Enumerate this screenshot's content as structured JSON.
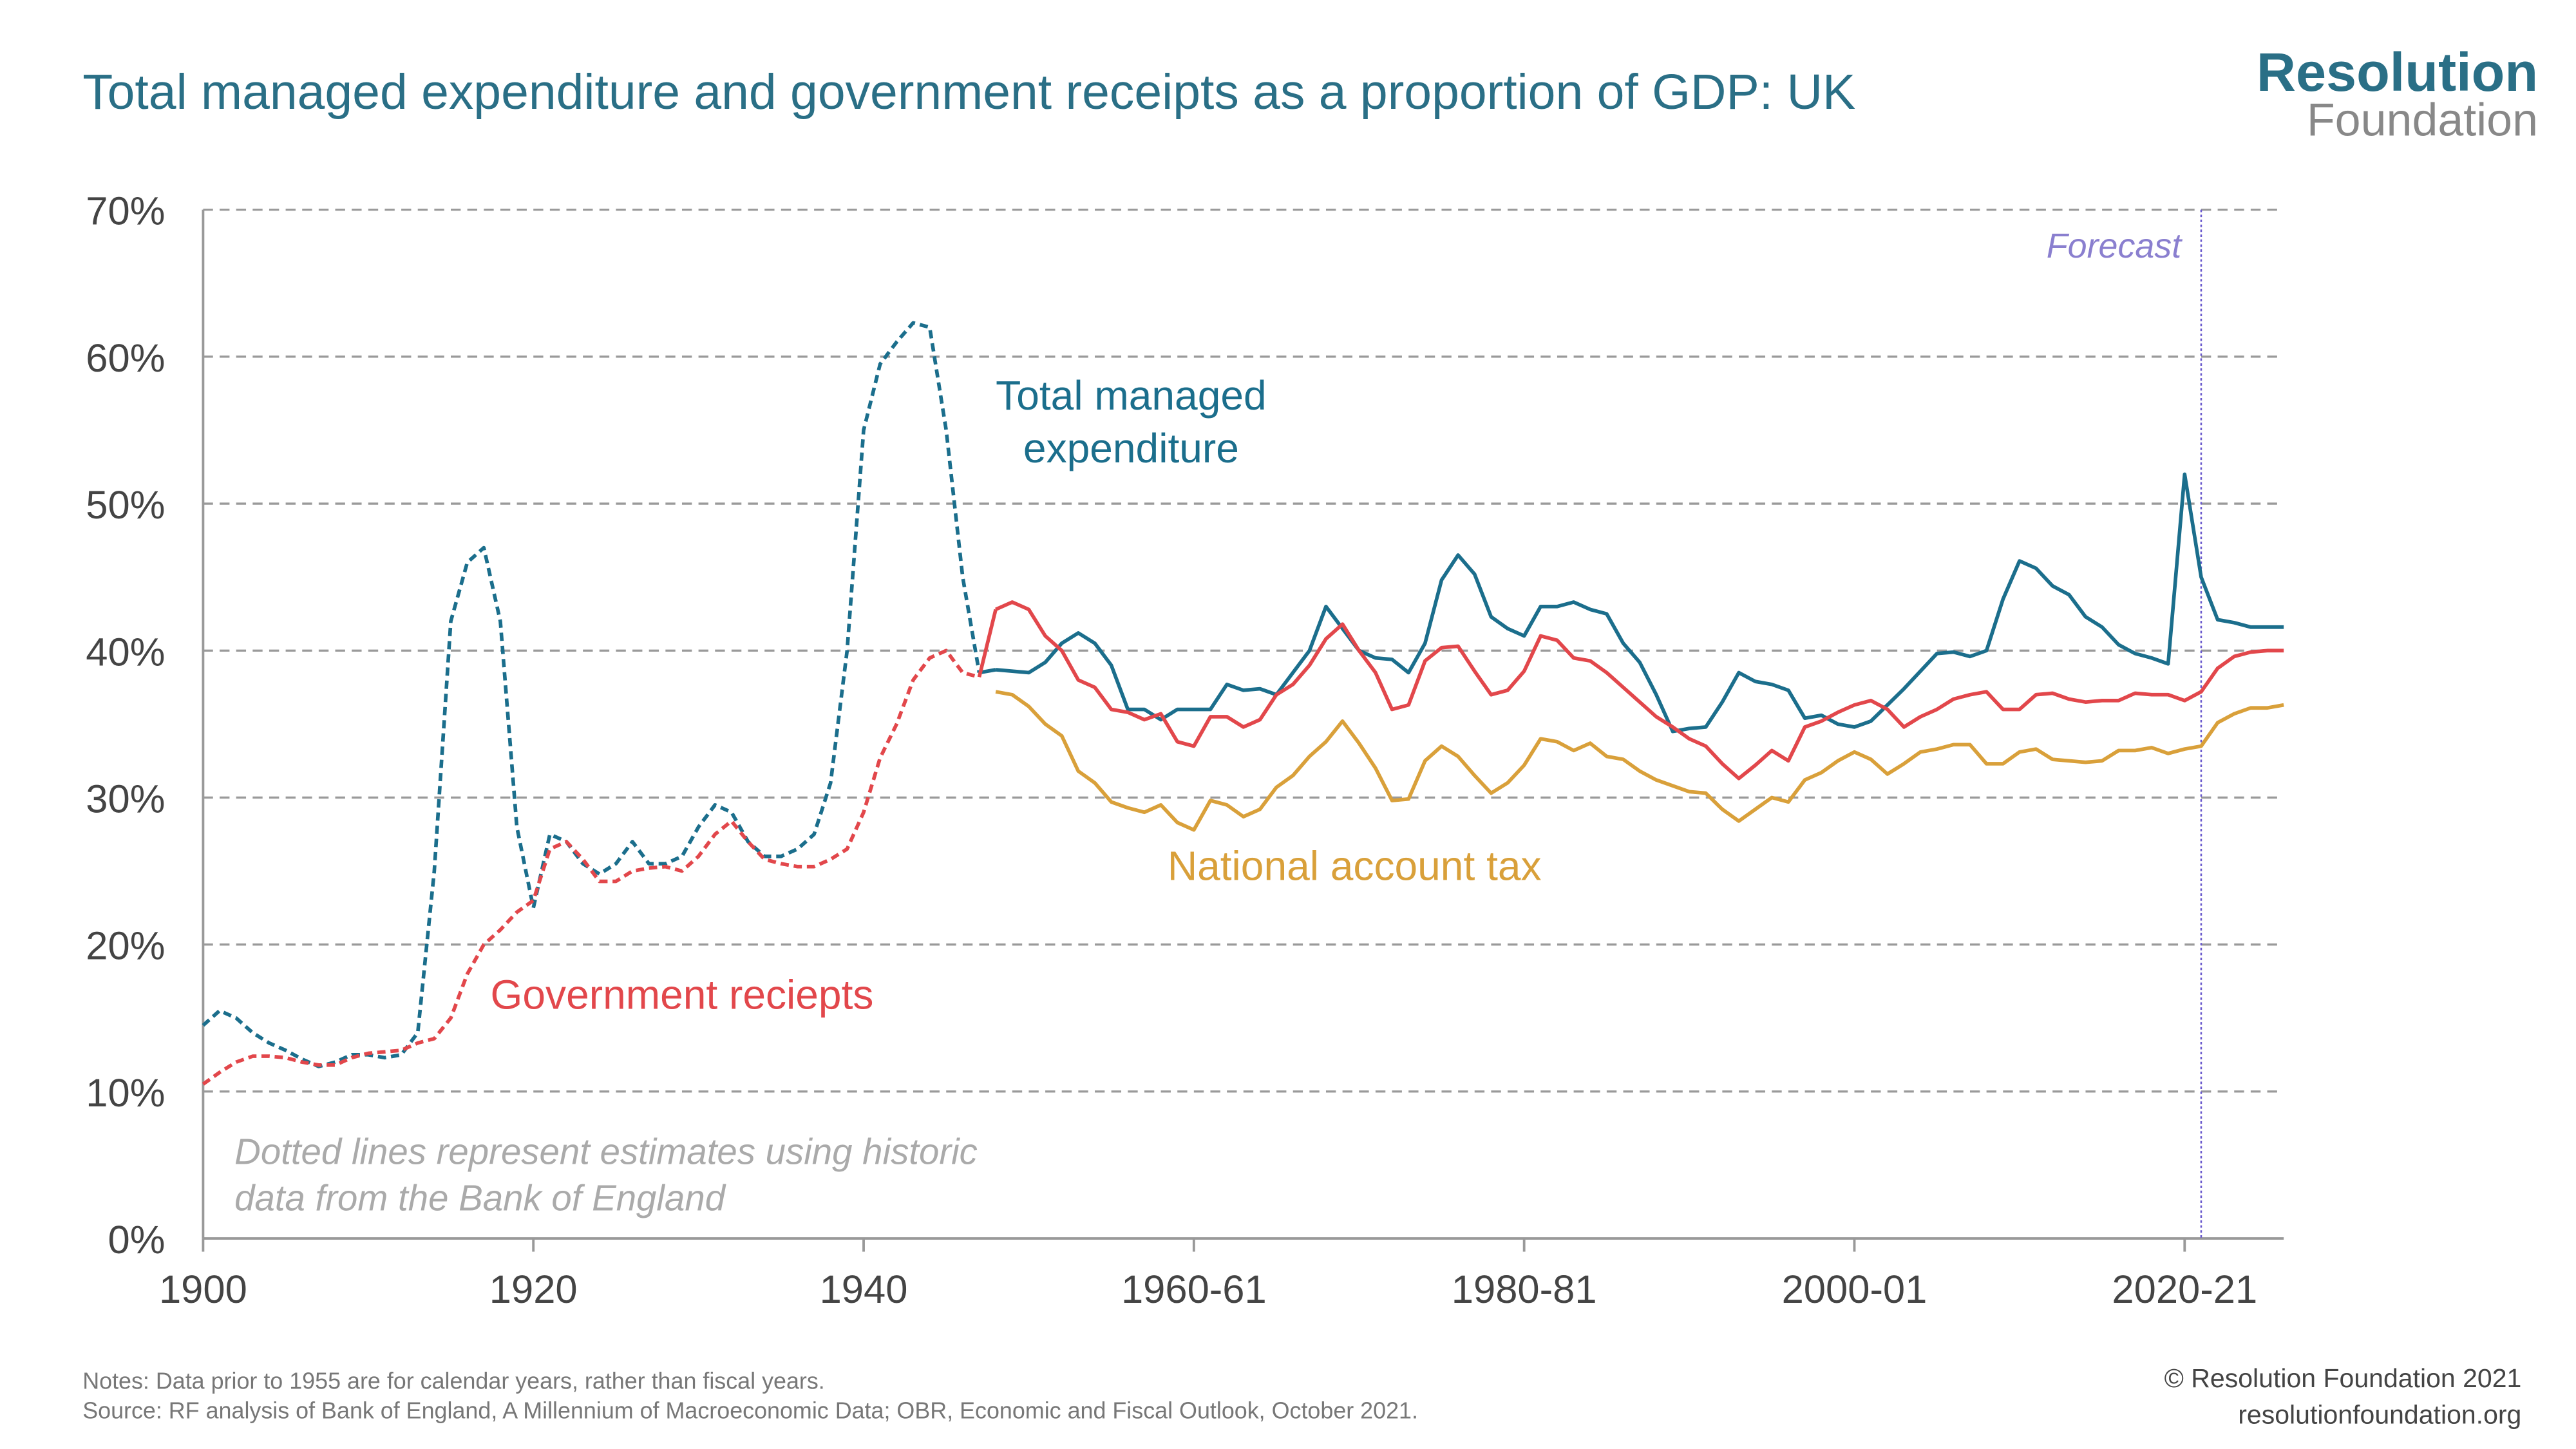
{
  "chart_data": {
    "type": "line",
    "title": "Total managed expenditure and government receipts as a proportion of GDP: UK",
    "logo": [
      "Resolution",
      "Foundation"
    ],
    "x": [
      1900,
      1901,
      1902,
      1903,
      1904,
      1905,
      1906,
      1907,
      1908,
      1909,
      1910,
      1911,
      1912,
      1913,
      1914,
      1915,
      1916,
      1917,
      1918,
      1919,
      1920,
      1921,
      1922,
      1923,
      1924,
      1925,
      1926,
      1927,
      1928,
      1929,
      1930,
      1931,
      1932,
      1933,
      1934,
      1935,
      1936,
      1937,
      1938,
      1939,
      1940,
      1941,
      1942,
      1943,
      1944,
      1945,
      1946,
      1947,
      1948,
      1949,
      1950,
      1951,
      1952,
      1953,
      1954,
      1955,
      1956,
      1957,
      1958,
      1959,
      1960,
      1961,
      1962,
      1963,
      1964,
      1965,
      1966,
      1967,
      1968,
      1969,
      1970,
      1971,
      1972,
      1973,
      1974,
      1975,
      1976,
      1977,
      1978,
      1979,
      1980,
      1981,
      1982,
      1983,
      1984,
      1985,
      1986,
      1987,
      1988,
      1989,
      1990,
      1991,
      1992,
      1993,
      1994,
      1995,
      1996,
      1997,
      1998,
      1999,
      2000,
      2001,
      2002,
      2003,
      2004,
      2005,
      2006,
      2007,
      2008,
      2009,
      2010,
      2011,
      2012,
      2013,
      2014,
      2015,
      2016,
      2017,
      2018,
      2019,
      2020,
      2021,
      2022,
      2023,
      2024,
      2025,
      2026
    ],
    "series": [
      {
        "name": "Total managed expenditure",
        "color": "#1b6e8c",
        "estimate_until": 1947,
        "values": [
          14.5,
          15.5,
          15,
          14,
          13.3,
          12.8,
          12.2,
          11.7,
          12,
          12.5,
          12.5,
          12.3,
          12.5,
          14,
          25,
          42,
          46,
          47,
          42,
          28,
          22.5,
          27.5,
          27,
          25.5,
          24.8,
          25.5,
          27,
          25.5,
          25.5,
          26,
          28,
          29.5,
          29,
          27,
          26,
          26,
          26.5,
          27.5,
          31,
          40,
          55,
          59.5,
          61,
          62.3,
          62,
          55,
          45,
          38.5,
          38.7,
          38.6,
          38.5,
          39.2,
          40.5,
          41.2,
          40.5,
          39,
          36,
          36,
          35.3,
          36,
          36,
          36,
          37.7,
          37.3,
          37.4,
          37,
          38.5,
          40,
          43,
          41.5,
          40,
          39.5,
          39.4,
          38.5,
          40.5,
          44.8,
          46.5,
          45.2,
          42.3,
          41.5,
          41,
          43,
          43,
          43.3,
          42.8,
          42.5,
          40.5,
          39.2,
          37,
          34.5,
          34.7,
          34.8,
          36.5,
          38.5,
          37.9,
          37.7,
          37.3,
          35.4,
          35.6,
          35,
          34.8,
          35.2,
          36.3,
          37.4,
          38.6,
          39.8,
          39.9,
          39.6,
          40,
          43.5,
          46.1,
          45.6,
          44.4,
          43.8,
          42.3,
          41.6,
          40.4,
          39.8,
          39.5,
          39.1,
          52,
          45,
          42.1,
          41.9,
          41.6,
          41.6,
          41.6
        ]
      },
      {
        "name": "Government reciepts",
        "color": "#e2474b",
        "estimate_until": 1947,
        "values": [
          10.5,
          11.3,
          12,
          12.4,
          12.4,
          12.3,
          12,
          11.8,
          11.8,
          12.3,
          12.6,
          12.7,
          12.8,
          13.3,
          13.6,
          15,
          18,
          20,
          21,
          22.2,
          23,
          26.5,
          27,
          25.8,
          24.3,
          24.3,
          25,
          25.2,
          25.3,
          25,
          26,
          27.5,
          28.4,
          27,
          25.8,
          25.5,
          25.3,
          25.3,
          25.8,
          26.5,
          29,
          32.7,
          35,
          38,
          39.5,
          40,
          38.5,
          38.2,
          42.8,
          43.3,
          42.8,
          41,
          40,
          38,
          37.5,
          36,
          35.8,
          35.3,
          35.7,
          33.8,
          33.5,
          35.5,
          35.5,
          34.8,
          35.3,
          37,
          37.7,
          39,
          40.8,
          41.8,
          40,
          38.5,
          36,
          36.3,
          39.3,
          40.2,
          40.3,
          38.6,
          37,
          37.3,
          38.6,
          41,
          40.7,
          39.5,
          39.3,
          38.5,
          37.5,
          36.5,
          35.5,
          34.8,
          34,
          33.5,
          32.3,
          31.3,
          32.2,
          33.2,
          32.5,
          34.8,
          35.2,
          35.8,
          36.3,
          36.6,
          36,
          34.8,
          35.5,
          36,
          36.7,
          37,
          37.2,
          36,
          36,
          37,
          37.1,
          36.7,
          36.5,
          36.6,
          36.6,
          37.1,
          37,
          37,
          36.6,
          37.2,
          38.8,
          39.6,
          39.9,
          40,
          40
        ]
      },
      {
        "name": "National account tax",
        "color": "#d9a03a",
        "values": [
          null,
          null,
          null,
          null,
          null,
          null,
          null,
          null,
          null,
          null,
          null,
          null,
          null,
          null,
          null,
          null,
          null,
          null,
          null,
          null,
          null,
          null,
          null,
          null,
          null,
          null,
          null,
          null,
          null,
          null,
          null,
          null,
          null,
          null,
          null,
          null,
          null,
          null,
          null,
          null,
          null,
          null,
          null,
          null,
          null,
          null,
          null,
          null,
          37.2,
          37,
          36.2,
          35,
          34.2,
          31.8,
          31,
          29.7,
          29.3,
          29,
          29.5,
          28.3,
          27.8,
          29.8,
          29.5,
          28.7,
          29.2,
          30.7,
          31.5,
          32.8,
          33.8,
          35.2,
          33.7,
          32,
          29.8,
          29.9,
          32.5,
          33.5,
          32.8,
          31.5,
          30.3,
          31,
          32.2,
          34,
          33.8,
          33.2,
          33.7,
          32.8,
          32.6,
          31.8,
          31.2,
          30.8,
          30.4,
          30.3,
          29.2,
          28.4,
          29.2,
          30,
          29.7,
          31.2,
          31.7,
          32.5,
          33.1,
          32.6,
          31.6,
          32.3,
          33.1,
          33.3,
          33.6,
          33.6,
          32.3,
          32.3,
          33.1,
          33.3,
          32.6,
          32.5,
          32.4,
          32.5,
          33.2,
          33.2,
          33.4,
          33,
          33.3,
          33.5,
          35.1,
          35.7,
          36.1,
          36.1,
          36.3
        ]
      }
    ],
    "xlim": [
      1900,
      2026
    ],
    "xticks": [
      1900,
      1920,
      1940,
      {
        "value": 1960,
        "label": "1960-61"
      },
      {
        "value": 1980,
        "label": "1980-81"
      },
      {
        "value": 2000,
        "label": "2000-01"
      },
      {
        "value": 2020,
        "label": "2020-21"
      }
    ],
    "ylim": [
      0,
      70
    ],
    "yticks": [
      {
        "value": 0,
        "label": "0%"
      },
      {
        "value": 10,
        "label": "10%"
      },
      {
        "value": 20,
        "label": "20%"
      },
      {
        "value": 30,
        "label": "30%"
      },
      {
        "value": 40,
        "label": "40%"
      },
      {
        "value": 50,
        "label": "50%"
      },
      {
        "value": 60,
        "label": "60%"
      },
      {
        "value": 70,
        "label": "70%"
      }
    ],
    "grid": true,
    "forecast": {
      "label": "Forecast",
      "x": 2021
    },
    "annotation": "Dotted lines represent estimates using historic data from the Bank of England",
    "notes": [
      "Notes: Data prior to 1955 are for calendar years, rather than fiscal years.",
      "Source: RF analysis of Bank of England, A Millennium of Macroeconomic Data; OBR, Economic and Fiscal Outlook, October 2021."
    ],
    "credits": [
      "© Resolution Foundation 2021",
      "resolutionfoundation.org"
    ]
  }
}
